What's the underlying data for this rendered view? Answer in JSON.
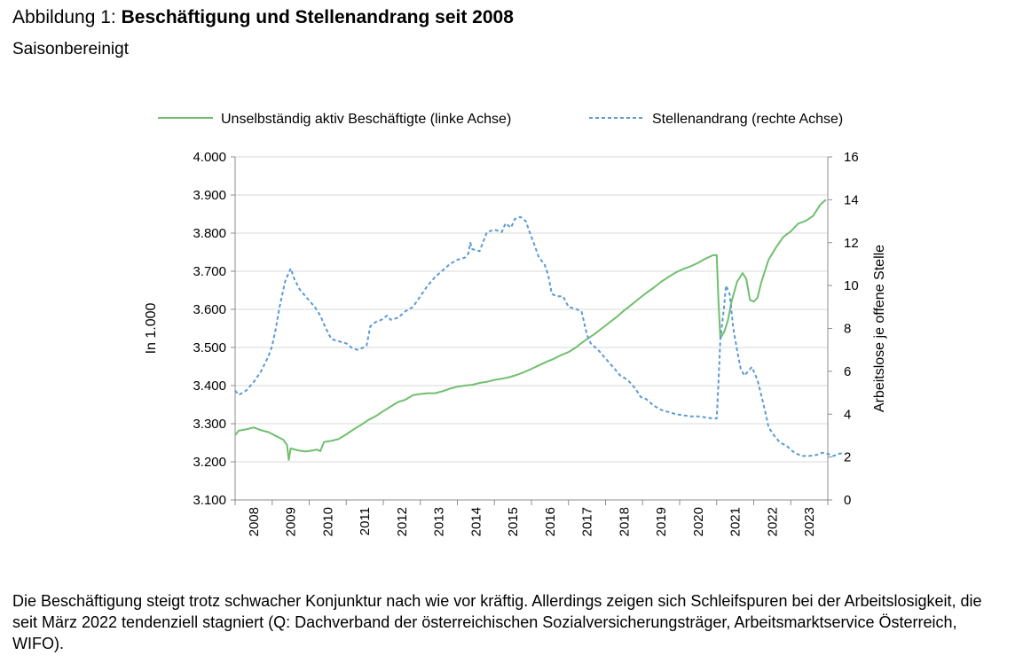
{
  "figure": {
    "title_prefix": "Abbildung 1: ",
    "title_main": "Beschäftigung und Stellenandrang seit 2008",
    "subtitle": "Saisonbereinigt",
    "caption": "Die Beschäftigung steigt trotz schwacher Konjunktur nach wie vor kräftig. Allerdings zeigen sich Schleifspuren bei der Arbeitslosigkeit, die seit März 2022 tendenziell stagniert (Q: Dachverband der österreichischen Sozialversicherungsträger, Arbeitsmarktservice Österreich, WIFO)."
  },
  "chart_data": {
    "type": "line",
    "title": "Beschäftigung und Stellenandrang seit 2008",
    "subtitle": "Saisonbereinigt",
    "legend_position": "top",
    "grid": "horizontal",
    "x": {
      "ticks": [
        "2008",
        "2009",
        "2010",
        "2011",
        "2012",
        "2013",
        "2014",
        "2015",
        "2016",
        "2017",
        "2018",
        "2019",
        "2020",
        "2021",
        "2022",
        "2023"
      ],
      "range": [
        2008.0,
        2024.0
      ]
    },
    "y_left": {
      "label": "In 1.000",
      "range": [
        3100,
        4000
      ],
      "ticks": [
        "3.100",
        "3.200",
        "3.300",
        "3.400",
        "3.500",
        "3.600",
        "3.700",
        "3.800",
        "3.900",
        "4.000"
      ]
    },
    "y_right": {
      "label": "Arbeitslose je offene Stelle",
      "range": [
        0,
        16
      ],
      "ticks": [
        "0",
        "2",
        "4",
        "6",
        "8",
        "10",
        "12",
        "14",
        "16"
      ]
    },
    "series": [
      {
        "name": "Unselbständig aktiv Beschäftigte (linke Achse)",
        "axis": "left",
        "color": "#70bf6e",
        "style": "solid",
        "points": [
          [
            2008.0,
            3270
          ],
          [
            2008.1,
            3282
          ],
          [
            2008.3,
            3285
          ],
          [
            2008.5,
            3290
          ],
          [
            2008.7,
            3283
          ],
          [
            2008.9,
            3278
          ],
          [
            2009.1,
            3268
          ],
          [
            2009.3,
            3258
          ],
          [
            2009.4,
            3244
          ],
          [
            2009.45,
            3205
          ],
          [
            2009.5,
            3235
          ],
          [
            2009.7,
            3230
          ],
          [
            2009.9,
            3227
          ],
          [
            2010.1,
            3230
          ],
          [
            2010.2,
            3232
          ],
          [
            2010.3,
            3228
          ],
          [
            2010.4,
            3252
          ],
          [
            2010.6,
            3255
          ],
          [
            2010.8,
            3260
          ],
          [
            2011.0,
            3272
          ],
          [
            2011.2,
            3285
          ],
          [
            2011.4,
            3297
          ],
          [
            2011.6,
            3310
          ],
          [
            2011.8,
            3320
          ],
          [
            2012.0,
            3333
          ],
          [
            2012.2,
            3345
          ],
          [
            2012.4,
            3357
          ],
          [
            2012.6,
            3363
          ],
          [
            2012.8,
            3375
          ],
          [
            2013.0,
            3378
          ],
          [
            2013.2,
            3380
          ],
          [
            2013.4,
            3380
          ],
          [
            2013.6,
            3385
          ],
          [
            2013.8,
            3392
          ],
          [
            2014.0,
            3397
          ],
          [
            2014.2,
            3400
          ],
          [
            2014.4,
            3402
          ],
          [
            2014.6,
            3407
          ],
          [
            2014.8,
            3410
          ],
          [
            2015.0,
            3415
          ],
          [
            2015.2,
            3418
          ],
          [
            2015.4,
            3422
          ],
          [
            2015.6,
            3428
          ],
          [
            2015.8,
            3435
          ],
          [
            2016.0,
            3444
          ],
          [
            2016.2,
            3453
          ],
          [
            2016.4,
            3462
          ],
          [
            2016.6,
            3470
          ],
          [
            2016.8,
            3480
          ],
          [
            2017.0,
            3488
          ],
          [
            2017.2,
            3500
          ],
          [
            2017.3,
            3508
          ],
          [
            2017.5,
            3522
          ],
          [
            2017.7,
            3535
          ],
          [
            2017.9,
            3550
          ],
          [
            2018.1,
            3565
          ],
          [
            2018.3,
            3580
          ],
          [
            2018.5,
            3597
          ],
          [
            2018.7,
            3612
          ],
          [
            2018.9,
            3628
          ],
          [
            2019.1,
            3643
          ],
          [
            2019.3,
            3657
          ],
          [
            2019.5,
            3672
          ],
          [
            2019.7,
            3685
          ],
          [
            2019.9,
            3697
          ],
          [
            2020.1,
            3706
          ],
          [
            2020.3,
            3713
          ],
          [
            2020.5,
            3722
          ],
          [
            2020.7,
            3733
          ],
          [
            2020.9,
            3742
          ],
          [
            2021.0,
            3742
          ],
          [
            2021.05,
            3620
          ],
          [
            2021.1,
            3525
          ],
          [
            2021.2,
            3540
          ],
          [
            2021.3,
            3570
          ],
          [
            2021.4,
            3620
          ],
          [
            2021.55,
            3672
          ],
          [
            2021.7,
            3695
          ],
          [
            2021.8,
            3680
          ],
          [
            2021.9,
            3625
          ],
          [
            2022.0,
            3620
          ],
          [
            2022.1,
            3630
          ],
          [
            2022.2,
            3670
          ],
          [
            2022.4,
            3730
          ],
          [
            2022.6,
            3762
          ],
          [
            2022.8,
            3790
          ],
          [
            2023.0,
            3805
          ],
          [
            2023.2,
            3825
          ],
          [
            2023.4,
            3832
          ],
          [
            2023.6,
            3845
          ],
          [
            2023.8,
            3875
          ],
          [
            2023.95,
            3888
          ]
        ]
      },
      {
        "name": "Stellenandrang (rechte Achse)",
        "axis": "right",
        "color": "#5b9bd5",
        "style": "dashed",
        "points": [
          [
            2008.0,
            5.1
          ],
          [
            2008.1,
            4.9
          ],
          [
            2008.3,
            5.1
          ],
          [
            2008.5,
            5.5
          ],
          [
            2008.7,
            6.0
          ],
          [
            2008.9,
            6.7
          ],
          [
            2009.0,
            7.2
          ],
          [
            2009.1,
            8.0
          ],
          [
            2009.2,
            9.0
          ],
          [
            2009.35,
            10.2
          ],
          [
            2009.5,
            10.8
          ],
          [
            2009.6,
            10.3
          ],
          [
            2009.75,
            9.8
          ],
          [
            2009.9,
            9.5
          ],
          [
            2010.0,
            9.3
          ],
          [
            2010.15,
            9.0
          ],
          [
            2010.3,
            8.6
          ],
          [
            2010.45,
            8.0
          ],
          [
            2010.6,
            7.5
          ],
          [
            2010.8,
            7.4
          ],
          [
            2011.0,
            7.3
          ],
          [
            2011.15,
            7.1
          ],
          [
            2011.3,
            7.0
          ],
          [
            2011.45,
            7.1
          ],
          [
            2011.55,
            7.2
          ],
          [
            2011.65,
            8.1
          ],
          [
            2011.8,
            8.3
          ],
          [
            2011.95,
            8.4
          ],
          [
            2012.1,
            8.6
          ],
          [
            2012.2,
            8.4
          ],
          [
            2012.4,
            8.5
          ],
          [
            2012.6,
            8.8
          ],
          [
            2012.8,
            9.0
          ],
          [
            2013.0,
            9.5
          ],
          [
            2013.2,
            10.0
          ],
          [
            2013.4,
            10.4
          ],
          [
            2013.6,
            10.7
          ],
          [
            2013.8,
            11.0
          ],
          [
            2014.0,
            11.2
          ],
          [
            2014.2,
            11.3
          ],
          [
            2014.3,
            11.5
          ],
          [
            2014.35,
            12.0
          ],
          [
            2014.4,
            11.7
          ],
          [
            2014.6,
            11.6
          ],
          [
            2014.8,
            12.5
          ],
          [
            2015.0,
            12.6
          ],
          [
            2015.2,
            12.5
          ],
          [
            2015.3,
            12.9
          ],
          [
            2015.45,
            12.7
          ],
          [
            2015.55,
            13.1
          ],
          [
            2015.7,
            13.2
          ],
          [
            2015.85,
            13.0
          ],
          [
            2015.95,
            12.5
          ],
          [
            2016.1,
            11.8
          ],
          [
            2016.2,
            11.3
          ],
          [
            2016.35,
            11.0
          ],
          [
            2016.45,
            10.5
          ],
          [
            2016.55,
            9.6
          ],
          [
            2016.7,
            9.5
          ],
          [
            2016.85,
            9.5
          ],
          [
            2017.0,
            9.0
          ],
          [
            2017.2,
            8.9
          ],
          [
            2017.35,
            8.8
          ],
          [
            2017.5,
            7.7
          ],
          [
            2017.6,
            7.3
          ],
          [
            2017.8,
            7.0
          ],
          [
            2018.0,
            6.6
          ],
          [
            2018.2,
            6.2
          ],
          [
            2018.4,
            5.8
          ],
          [
            2018.6,
            5.6
          ],
          [
            2018.8,
            5.2
          ],
          [
            2018.95,
            4.8
          ],
          [
            2019.1,
            4.7
          ],
          [
            2019.3,
            4.4
          ],
          [
            2019.5,
            4.2
          ],
          [
            2019.7,
            4.1
          ],
          [
            2019.9,
            4.0
          ],
          [
            2020.1,
            3.95
          ],
          [
            2020.3,
            3.9
          ],
          [
            2020.5,
            3.9
          ],
          [
            2020.7,
            3.85
          ],
          [
            2020.9,
            3.8
          ],
          [
            2021.0,
            3.8
          ],
          [
            2021.05,
            5.5
          ],
          [
            2021.1,
            7.5
          ],
          [
            2021.2,
            9.0
          ],
          [
            2021.25,
            10.0
          ],
          [
            2021.35,
            9.6
          ],
          [
            2021.45,
            8.0
          ],
          [
            2021.55,
            7.0
          ],
          [
            2021.65,
            6.1
          ],
          [
            2021.75,
            5.8
          ],
          [
            2021.85,
            6.0
          ],
          [
            2021.95,
            6.2
          ],
          [
            2022.1,
            5.6
          ],
          [
            2022.2,
            4.9
          ],
          [
            2022.3,
            4.2
          ],
          [
            2022.4,
            3.4
          ],
          [
            2022.55,
            3.0
          ],
          [
            2022.7,
            2.7
          ],
          [
            2022.9,
            2.5
          ],
          [
            2023.1,
            2.2
          ],
          [
            2023.3,
            2.05
          ],
          [
            2023.5,
            2.05
          ],
          [
            2023.7,
            2.1
          ],
          [
            2023.85,
            2.2
          ],
          [
            2024.0,
            2.15
          ],
          [
            2024.15,
            2.05
          ],
          [
            2024.3,
            2.15
          ],
          [
            2024.45,
            2.2
          ]
        ]
      }
    ]
  }
}
